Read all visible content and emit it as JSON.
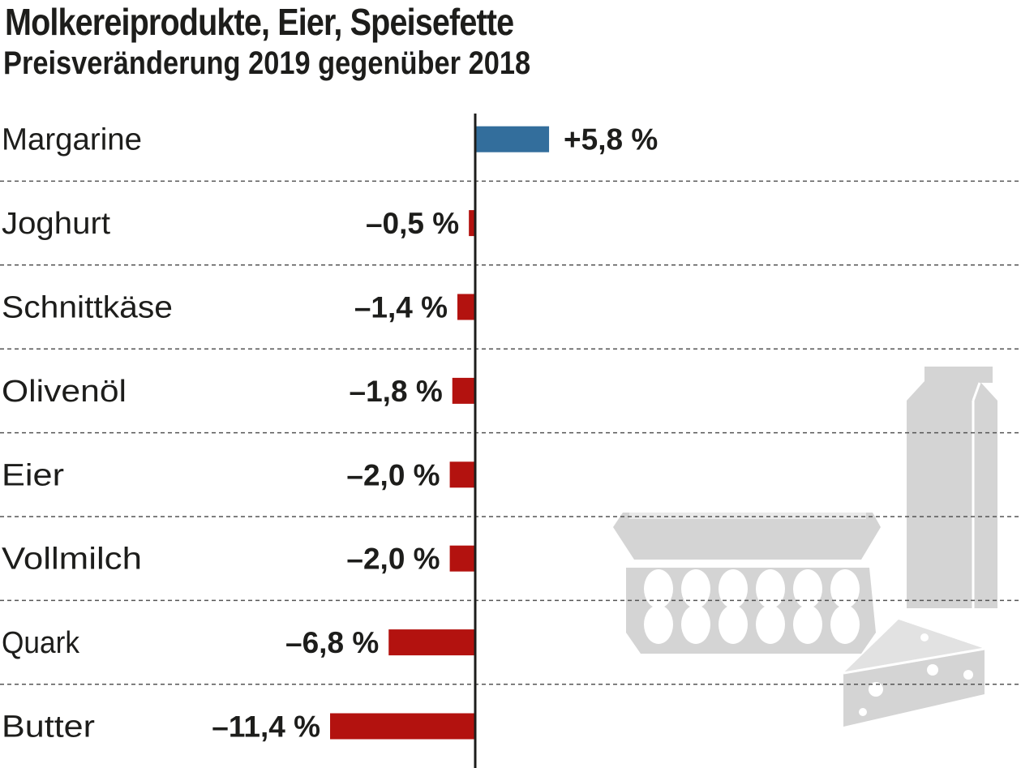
{
  "header": {
    "title": "Molkereiprodukte, Eier, Speisefette",
    "subtitle": "Preisveränderung 2019 gegenüber 2018"
  },
  "colors": {
    "positive": "#336e9c",
    "negative": "#b3120f",
    "illustration": "#d4d4d4",
    "text": "#1d1d1b"
  },
  "chart_data": {
    "type": "bar",
    "orientation": "horizontal",
    "title": "Molkereiprodukte, Eier, Speisefette",
    "subtitle": "Preisveränderung 2019 gegenüber 2018",
    "unit": "%",
    "grid": "dashed separators between rows",
    "categories": [
      "Margarine",
      "Joghurt",
      "Schnittkäse",
      "Olivenöl",
      "Eier",
      "Vollmilch",
      "Quark",
      "Butter"
    ],
    "values": [
      5.8,
      -0.5,
      -1.4,
      -1.8,
      -2.0,
      -2.0,
      -6.8,
      -11.4
    ],
    "value_labels": [
      "+5,8 %",
      "–0,5 %",
      "–1,4 %",
      "–1,8 %",
      "–2,0 %",
      "–2,0 %",
      "–6,8 %",
      "–11,4 %"
    ]
  }
}
